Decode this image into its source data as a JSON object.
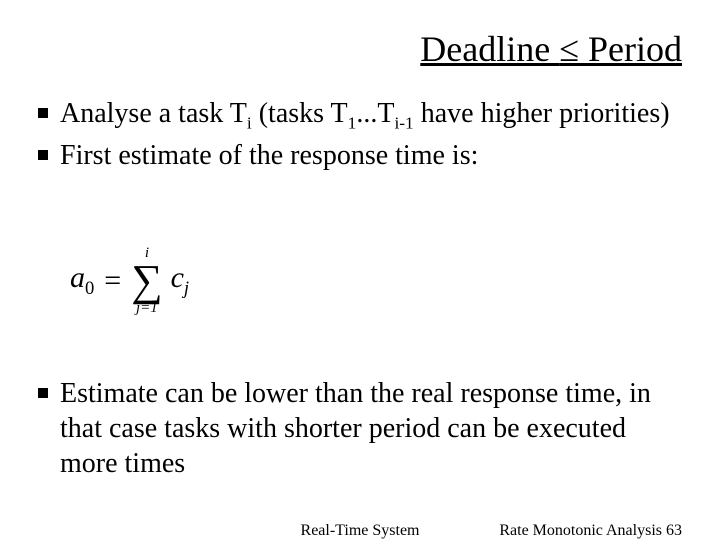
{
  "title_parts": {
    "left": "Deadline ",
    "sym": "≤",
    "right": " Period"
  },
  "bullets_top": [
    {
      "prefix": "Analyse a task T",
      "sub1": "i",
      "mid1": " (tasks T",
      "sub2": "1",
      "mid2": "...T",
      "sub3": "i-1",
      "suffix": " have higher priorities)"
    },
    {
      "plain": "First estimate of the response time is:"
    }
  ],
  "formula": {
    "lhs_var": "a",
    "lhs_sub": "0",
    "eq": "=",
    "sum_upper": "i",
    "sum_symbol": "∑",
    "sum_lower": "j=1",
    "rhs_var": "c",
    "rhs_sub": "j"
  },
  "bullets_bottom": [
    {
      "plain": "Estimate can be lower than the real response time, in that case tasks with shorter period can be executed more times"
    }
  ],
  "footer": {
    "center": "Real-Time System",
    "right_label": "Rate Monotonic Analysis ",
    "right_page": "63"
  },
  "style": {
    "bg": "#ffffff",
    "text": "#000000",
    "title_fontsize": 36,
    "body_fontsize": 28,
    "footer_fontsize": 16,
    "bullet_marker_size": 10,
    "font_family": "Times New Roman"
  }
}
